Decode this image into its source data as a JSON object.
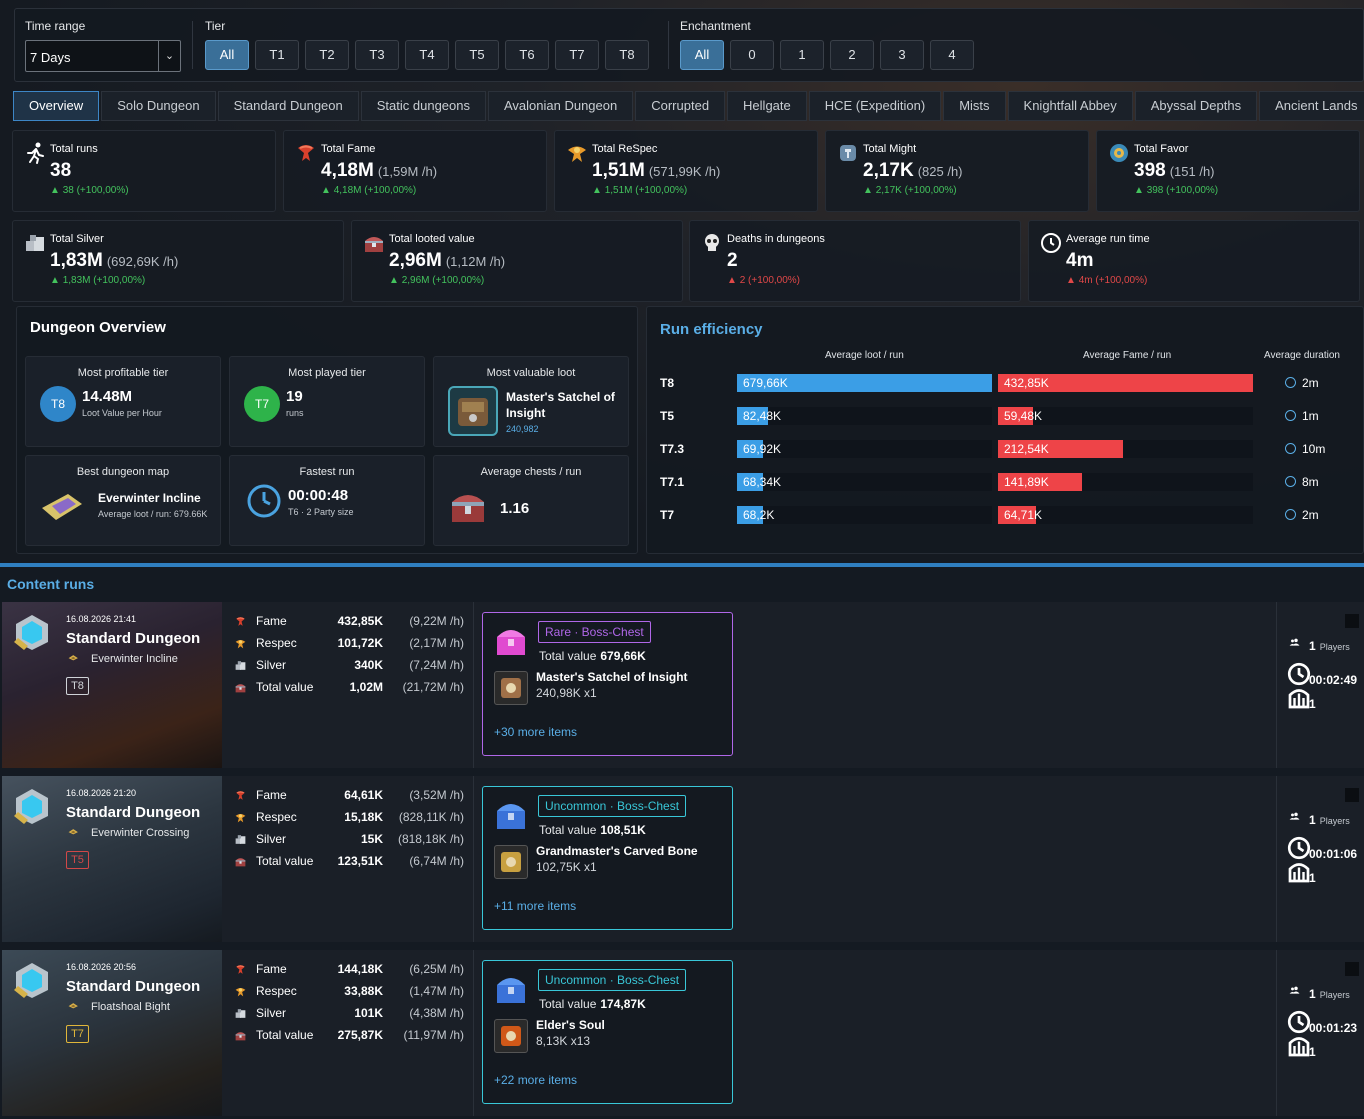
{
  "filters": {
    "time_range_label": "Time range",
    "time_range_value": "7 Days",
    "tier_label": "Tier",
    "tiers": [
      "All",
      "T1",
      "T2",
      "T3",
      "T4",
      "T5",
      "T6",
      "T7",
      "T8"
    ],
    "tier_selected": "All",
    "enchant_label": "Enchantment",
    "enchants": [
      "All",
      "0",
      "1",
      "2",
      "3",
      "4"
    ],
    "enchant_selected": "All"
  },
  "tabs": [
    "Overview",
    "Solo Dungeon",
    "Standard Dungeon",
    "Static dungeons",
    "Avalonian Dungeon",
    "Corrupted",
    "Hellgate",
    "HCE (Expedition)",
    "Mists",
    "Knightfall Abbey",
    "Abyssal Depths",
    "Ancient Lands"
  ],
  "active_tab": "Overview",
  "stats_row1": [
    {
      "label": "Total runs",
      "value": "38",
      "rate": "",
      "delta": "38 (+100,00%)",
      "icon": "running-icon"
    },
    {
      "label": "Total Fame",
      "value": "4,18M",
      "rate": "(1,59M /h)",
      "delta": "4,18M (+100,00%)",
      "icon": "fame-icon"
    },
    {
      "label": "Total ReSpec",
      "value": "1,51M",
      "rate": "(571,99K /h)",
      "delta": "1,51M (+100,00%)",
      "icon": "respec-icon"
    },
    {
      "label": "Total Might",
      "value": "2,17K",
      "rate": "(825 /h)",
      "delta": "2,17K (+100,00%)",
      "icon": "might-icon"
    },
    {
      "label": "Total Favor",
      "value": "398",
      "rate": "(151 /h)",
      "delta": "398 (+100,00%)",
      "icon": "favor-icon"
    }
  ],
  "stats_row2": [
    {
      "label": "Total Silver",
      "value": "1,83M",
      "rate": "(692,69K /h)",
      "delta": "1,83M (+100,00%)",
      "icon": "silver-icon",
      "negative": false
    },
    {
      "label": "Total looted value",
      "value": "2,96M",
      "rate": "(1,12M /h)",
      "delta": "2,96M (+100,00%)",
      "icon": "chest-icon",
      "negative": false
    },
    {
      "label": "Deaths in dungeons",
      "value": "2",
      "rate": "",
      "delta": "2 (+100,00%)",
      "icon": "skull-icon",
      "negative": true
    },
    {
      "label": "Average run time",
      "value": "4m",
      "rate": "",
      "delta": "4m (+100,00%)",
      "icon": "clock-icon",
      "negative": true
    }
  ],
  "overview": {
    "title": "Dungeon Overview",
    "profitable": {
      "title": "Most profitable tier",
      "tier": "T8",
      "value": "14.48M",
      "sub": "Loot Value per Hour",
      "color": "#2f86c9"
    },
    "played": {
      "title": "Most played tier",
      "tier": "T7",
      "value": "19",
      "sub": "runs",
      "color": "#2eb34a"
    },
    "loot": {
      "title": "Most valuable loot",
      "name": "Master's Satchel of Insight",
      "value": "240,982"
    },
    "map": {
      "title": "Best dungeon map",
      "name": "Everwinter Incline",
      "sub": "Average loot / run: 679.66K"
    },
    "fastest": {
      "title": "Fastest run",
      "value": "00:00:48",
      "sub": "T6 · 2 Party size"
    },
    "chests": {
      "title": "Average chests / run",
      "value": "1.16"
    }
  },
  "efficiency": {
    "title": "Run efficiency",
    "col_loot": "Average loot / run",
    "col_fame": "Average Fame / run",
    "col_duration": "Average duration",
    "rows": [
      {
        "tier": "T8",
        "loot": 679.66,
        "loot_label": "679,66K",
        "fame": 432.85,
        "fame_label": "432,85K",
        "duration": "2m"
      },
      {
        "tier": "T5",
        "loot": 82.48,
        "loot_label": "82,48K",
        "fame": 59.48,
        "fame_label": "59,48K",
        "duration": "1m"
      },
      {
        "tier": "T7.3",
        "loot": 69.92,
        "loot_label": "69,92K",
        "fame": 212.54,
        "fame_label": "212,54K",
        "duration": "10m"
      },
      {
        "tier": "T7.1",
        "loot": 68.34,
        "loot_label": "68,34K",
        "fame": 141.89,
        "fame_label": "141,89K",
        "duration": "8m"
      },
      {
        "tier": "T7",
        "loot": 68.2,
        "loot_label": "68,2K",
        "fame": 64.71,
        "fame_label": "64,71K",
        "duration": "2m"
      }
    ]
  },
  "content_runs": {
    "title": "Content runs",
    "stat_labels": {
      "fame": "Fame",
      "respec": "Respec",
      "silver": "Silver",
      "total": "Total value"
    },
    "total_value_label": "Total value",
    "players_label": "Players",
    "runs": [
      {
        "date": "16.08.2026 21:41",
        "type": "Standard Dungeon",
        "map": "Everwinter Incline",
        "tier": "T8",
        "tier_color": "#cfd3d8",
        "fame": "432,85K",
        "fame_rate": "(9,22M /h)",
        "respec": "101,72K",
        "respec_rate": "(2,17M /h)",
        "silver": "340K",
        "silver_rate": "(7,24M /h)",
        "total": "1,02M",
        "total_rate": "(21,72M /h)",
        "chest": "Rare · Boss-Chest",
        "chest_color": "#b067e8",
        "chest_value": "679,66K",
        "item": "Master's Satchel of Insight",
        "item_qty": "240,98K x1",
        "more": "+30 more items",
        "players": "1",
        "duration": "00:02:49",
        "party": "1"
      },
      {
        "date": "16.08.2026 21:20",
        "type": "Standard Dungeon",
        "map": "Everwinter Crossing",
        "tier": "T5",
        "tier_color": "#d24848",
        "fame": "64,61K",
        "fame_rate": "(3,52M /h)",
        "respec": "15,18K",
        "respec_rate": "(828,11K /h)",
        "silver": "15K",
        "silver_rate": "(818,18K /h)",
        "total": "123,51K",
        "total_rate": "(6,74M /h)",
        "chest": "Uncommon · Boss-Chest",
        "chest_color": "#39c7d8",
        "chest_value": "108,51K",
        "item": "Grandmaster's Carved Bone",
        "item_qty": "102,75K x1",
        "more": "+11 more items",
        "players": "1",
        "duration": "00:01:06",
        "party": "1"
      },
      {
        "date": "16.08.2026 20:56",
        "type": "Standard Dungeon",
        "map": "Floatshoal Bight",
        "tier": "T7",
        "tier_color": "#e0b63a",
        "fame": "144,18K",
        "fame_rate": "(6,25M /h)",
        "respec": "33,88K",
        "respec_rate": "(1,47M /h)",
        "silver": "101K",
        "silver_rate": "(4,38M /h)",
        "total": "275,87K",
        "total_rate": "(11,97M /h)",
        "chest": "Uncommon · Boss-Chest",
        "chest_color": "#39c7d8",
        "chest_value": "174,87K",
        "item": "Elder's Soul",
        "item_qty": "8,13K x13",
        "more": "+22 more items",
        "players": "1",
        "duration": "00:01:23",
        "party": "1"
      }
    ]
  }
}
